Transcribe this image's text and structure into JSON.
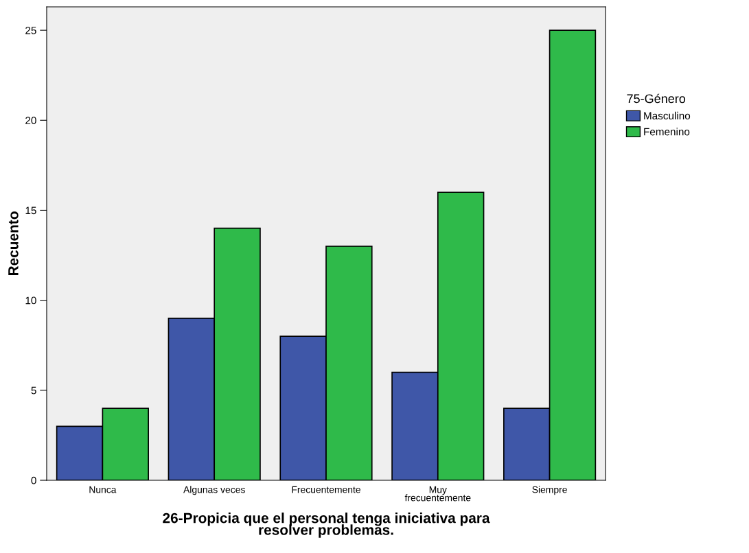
{
  "chart_data": {
    "type": "bar",
    "xlabel": "26-Propicia que el personal tenga iniciativa para\nresolver problemas.",
    "ylabel": "Recuento",
    "legend_title": "75-Género",
    "categories": [
      "Nunca",
      "Algunas veces",
      "Frecuentemente",
      "Muy\nfrecuentemente",
      "Siempre"
    ],
    "series": [
      {
        "name": "Masculino",
        "color": "#3f57a8",
        "values": [
          3,
          9,
          8,
          6,
          4
        ]
      },
      {
        "name": "Femenino",
        "color": "#2fba4a",
        "values": [
          4,
          14,
          13,
          16,
          25
        ]
      }
    ],
    "ylim": [
      0,
      26.3
    ],
    "yticks": [
      0,
      5,
      10,
      15,
      20,
      25
    ],
    "grid": false,
    "legend": "right"
  }
}
